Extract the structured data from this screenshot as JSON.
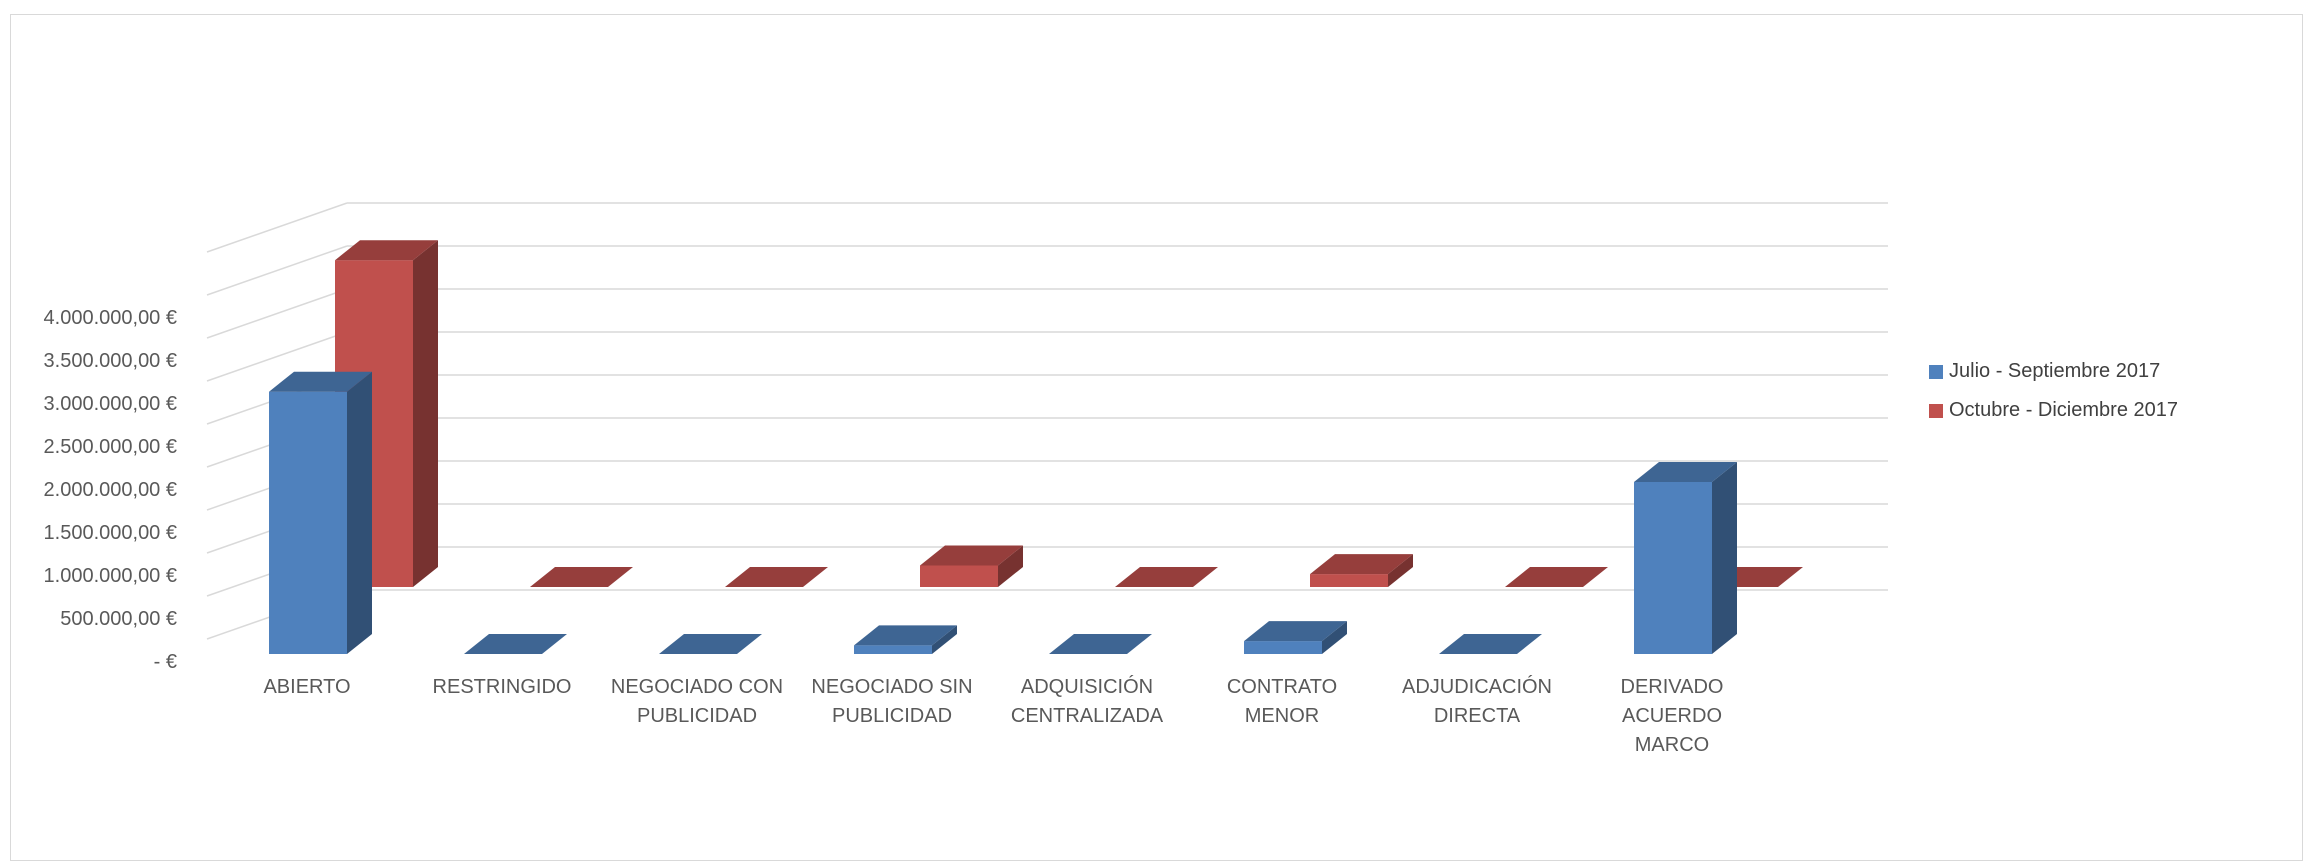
{
  "chart_data": {
    "type": "bar",
    "title": "",
    "xlabel": "",
    "ylabel": "",
    "ylim": [
      0,
      4000000
    ],
    "y_ticks": [
      0,
      500000,
      1000000,
      1500000,
      2000000,
      2500000,
      3000000,
      3500000,
      4000000
    ],
    "y_tick_labels": [
      "-   €",
      "500.000,00 €",
      "1.000.000,00 €",
      "1.500.000,00 €",
      "2.000.000,00 €",
      "2.500.000,00 €",
      "3.000.000,00 €",
      "3.500.000,00 €",
      "4.000.000,00 €"
    ],
    "categories": [
      [
        "ABIERTO"
      ],
      [
        "RESTRINGIDO"
      ],
      [
        "NEGOCIADO CON",
        "PUBLICIDAD"
      ],
      [
        "NEGOCIADO SIN",
        "PUBLICIDAD"
      ],
      [
        "ADQUISICIÓN",
        "CENTRALIZADA"
      ],
      [
        "CONTRATO",
        "MENOR"
      ],
      [
        "ADJUDICACIÓN",
        "DIRECTA"
      ],
      [
        "DERIVADO",
        "ACUERDO",
        "MARCO"
      ]
    ],
    "series": [
      {
        "name": "Julio - Septiembre 2017",
        "color": "#4f81bd",
        "values": [
          3050000,
          0,
          0,
          100000,
          0,
          150000,
          0,
          2000000
        ]
      },
      {
        "name": "Octubre - Diciembre 2017",
        "color": "#c0504d",
        "values": [
          3800000,
          0,
          0,
          250000,
          0,
          150000,
          0,
          0
        ]
      }
    ],
    "legend_position": "right",
    "grid": true,
    "style": "3d-column"
  }
}
